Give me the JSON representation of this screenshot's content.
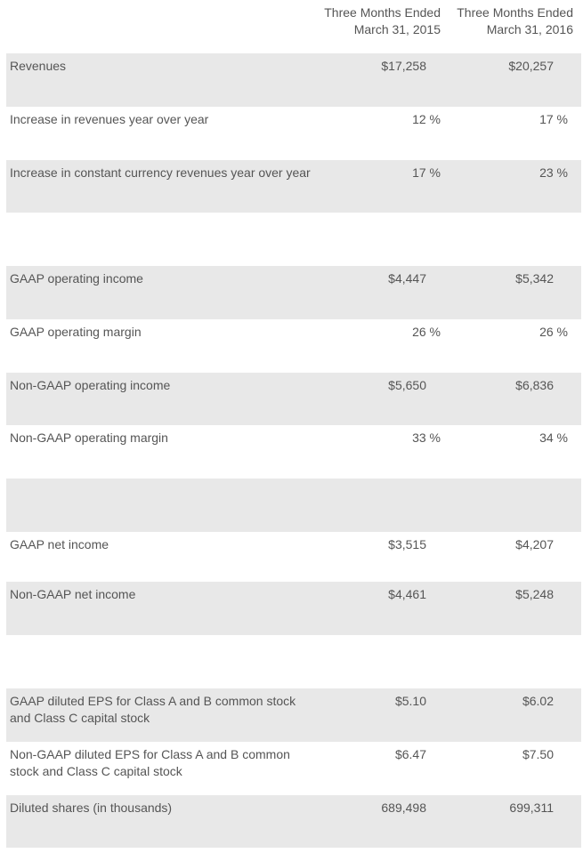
{
  "header": {
    "col1_line1": "Three Months Ended",
    "col1_line2": "March 31, 2015",
    "col2_line1": "Three Months Ended",
    "col2_line2": "March 31, 2016"
  },
  "rows": [
    {
      "label": "Revenues",
      "v1": "$17,258",
      "v2": "$20,257"
    },
    {
      "label": "Increase in revenues year over year",
      "v1": "12 %",
      "v2": "17 %"
    },
    {
      "label": "Increase in constant currency revenues year over year",
      "v1": "17 %",
      "v2": "23 %"
    },
    {
      "label": "",
      "v1": "",
      "v2": ""
    },
    {
      "label": "GAAP operating income",
      "v1": "$4,447",
      "v2": "$5,342"
    },
    {
      "label": "GAAP operating margin",
      "v1": "26 %",
      "v2": "26 %"
    },
    {
      "label": "Non-GAAP operating income",
      "v1": "$5,650",
      "v2": "$6,836"
    },
    {
      "label": "Non-GAAP operating margin",
      "v1": "33 %",
      "v2": "34 %"
    },
    {
      "label": "",
      "v1": "",
      "v2": ""
    },
    {
      "label": "GAAP net income",
      "v1": "$3,515",
      "v2": "$4,207"
    },
    {
      "label": "Non-GAAP net income",
      "v1": "$4,461",
      "v2": "$5,248"
    },
    {
      "label": "",
      "v1": "",
      "v2": ""
    },
    {
      "label": "GAAP diluted EPS for Class A and B common stock and Class C capital stock",
      "v1": "$5.10",
      "v2": "$6.02"
    },
    {
      "label": "Non-GAAP diluted EPS for Class A and B common stock and Class C capital stock",
      "v1": "$6.47",
      "v2": "$7.50"
    },
    {
      "label": "Diluted shares (in thousands)",
      "v1": "689,498",
      "v2": "699,311"
    }
  ]
}
